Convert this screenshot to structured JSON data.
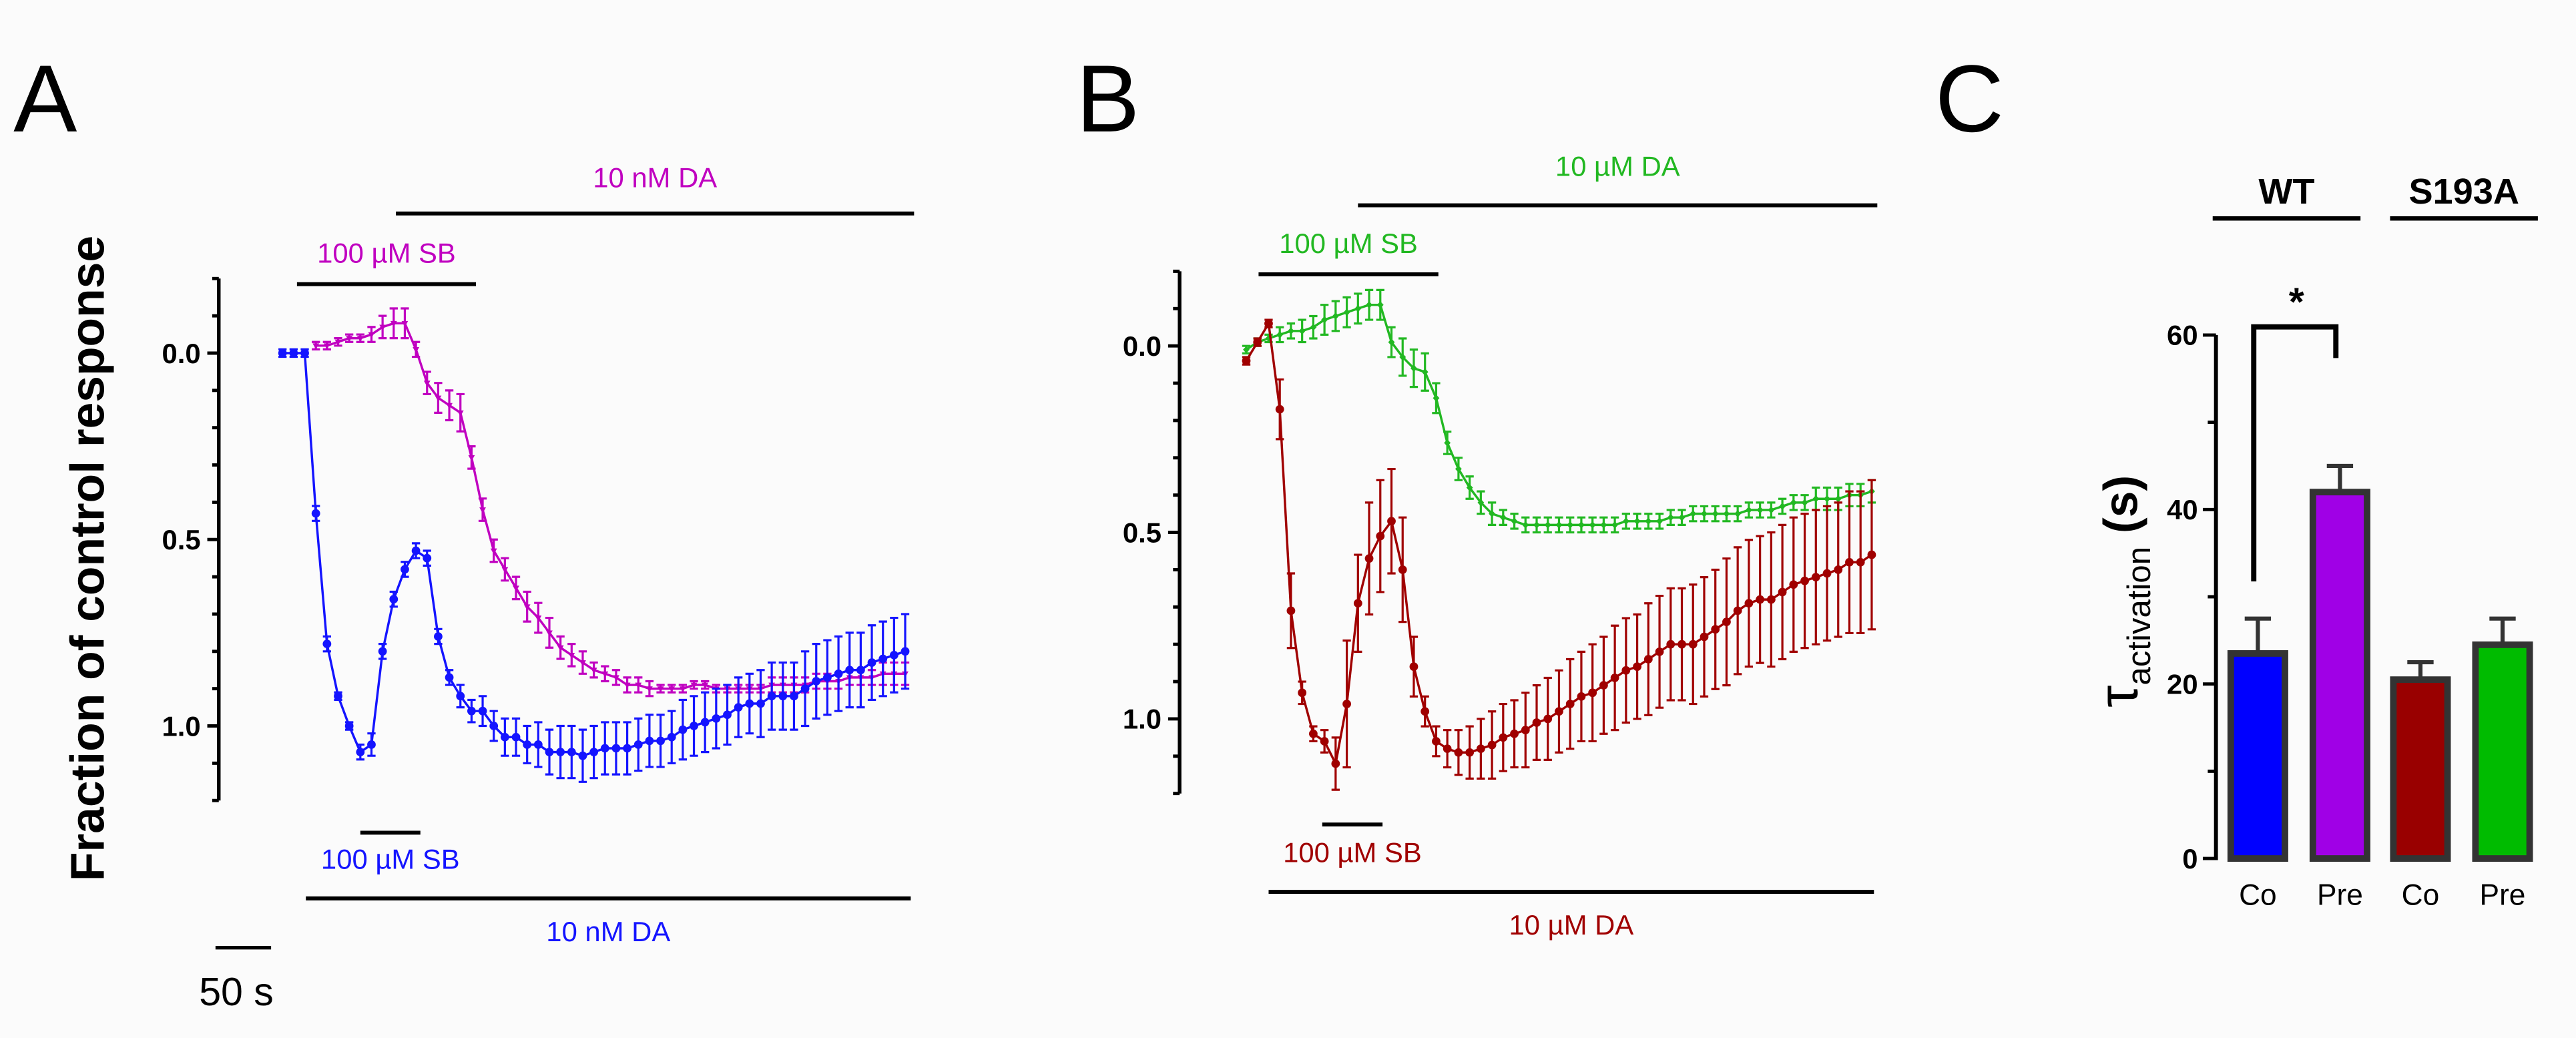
{
  "chart_data": [
    {
      "panel": "A",
      "type": "line",
      "ylabel": "Fraction of control response",
      "ylim": [
        -0.2,
        1.2
      ],
      "y_inverted": true,
      "y_major_ticks": [
        0.0,
        0.5,
        1.0
      ],
      "y_tick_labels": [
        "0.0",
        "0.5",
        "1.0"
      ],
      "y_minor_step": 0.1,
      "x_unit": "s",
      "scale_bar": {
        "value": 50,
        "label": "50 s"
      },
      "series": [
        {
          "name": "magenta",
          "color": "#c000c0",
          "marker": "triangle",
          "t_start": 30,
          "t_step": 10,
          "values": [
            -0.02,
            -0.02,
            -0.03,
            -0.04,
            -0.04,
            -0.05,
            -0.07,
            -0.08,
            -0.08,
            -0.01,
            0.08,
            0.12,
            0.14,
            0.16,
            0.28,
            0.42,
            0.53,
            0.58,
            0.63,
            0.68,
            0.71,
            0.75,
            0.79,
            0.81,
            0.83,
            0.85,
            0.86,
            0.87,
            0.89,
            0.89,
            0.9,
            0.9,
            0.9,
            0.9,
            0.89,
            0.89,
            0.9,
            0.9,
            0.9,
            0.9,
            0.9,
            0.89,
            0.89,
            0.89,
            0.89,
            0.88,
            0.88,
            0.88,
            0.87,
            0.87,
            0.87,
            0.86,
            0.86,
            0.86
          ],
          "errors": [
            0.01,
            0.01,
            0.01,
            0.01,
            0.01,
            0.02,
            0.03,
            0.04,
            0.04,
            0.02,
            0.03,
            0.04,
            0.04,
            0.05,
            0.03,
            0.03,
            0.03,
            0.03,
            0.03,
            0.04,
            0.04,
            0.04,
            0.03,
            0.03,
            0.03,
            0.02,
            0.02,
            0.02,
            0.02,
            0.02,
            0.02,
            0.01,
            0.01,
            0.01,
            0.01,
            0.01,
            0.01,
            0.01,
            0.01,
            0.01,
            0.01,
            0.02,
            0.02,
            0.02,
            0.02,
            0.02,
            0.02,
            0.02,
            0.02,
            0.02,
            0.02,
            0.03,
            0.03,
            0.03
          ]
        },
        {
          "name": "blue",
          "color": "#1414ff",
          "marker": "circle",
          "t_start": 0,
          "t_step": 10,
          "values": [
            0,
            0,
            0,
            0.43,
            0.78,
            0.92,
            1.0,
            1.07,
            1.05,
            0.8,
            0.66,
            0.58,
            0.53,
            0.55,
            0.76,
            0.87,
            0.92,
            0.96,
            0.96,
            1.0,
            1.03,
            1.03,
            1.05,
            1.05,
            1.07,
            1.07,
            1.07,
            1.08,
            1.07,
            1.06,
            1.06,
            1.06,
            1.05,
            1.04,
            1.04,
            1.03,
            1.01,
            1.0,
            0.99,
            0.98,
            0.97,
            0.95,
            0.94,
            0.94,
            0.92,
            0.92,
            0.92,
            0.9,
            0.88,
            0.87,
            0.86,
            0.85,
            0.85,
            0.83,
            0.82,
            0.81,
            0.8
          ],
          "errors": [
            0.01,
            0.01,
            0.01,
            0.02,
            0.02,
            0.01,
            0.01,
            0.02,
            0.03,
            0.02,
            0.02,
            0.02,
            0.02,
            0.02,
            0.02,
            0.02,
            0.03,
            0.03,
            0.04,
            0.04,
            0.05,
            0.05,
            0.05,
            0.06,
            0.06,
            0.07,
            0.07,
            0.07,
            0.07,
            0.07,
            0.07,
            0.07,
            0.07,
            0.07,
            0.07,
            0.07,
            0.08,
            0.08,
            0.08,
            0.08,
            0.08,
            0.08,
            0.08,
            0.09,
            0.09,
            0.09,
            0.09,
            0.1,
            0.1,
            0.1,
            0.1,
            0.1,
            0.1,
            0.1,
            0.1,
            0.1,
            0.1
          ]
        }
      ],
      "annotations": [
        {
          "label": "10 nM DA",
          "color": "#c000c0",
          "t": [
            102,
            568
          ],
          "position": "top-upper"
        },
        {
          "label": "100 µM SB",
          "color": "#c000c0",
          "t": [
            13,
            174
          ],
          "position": "top-lower"
        },
        {
          "label": "100 µM SB",
          "color": "#1414ff",
          "t": [
            70,
            124
          ],
          "position": "bottom-upper"
        },
        {
          "label": "10 nM DA",
          "color": "#1414ff",
          "t": [
            21,
            565
          ],
          "position": "bottom-lower"
        }
      ]
    },
    {
      "panel": "B",
      "type": "line",
      "ylim": [
        -0.2,
        1.2
      ],
      "y_inverted": true,
      "y_major_ticks": [
        0.0,
        0.5,
        1.0
      ],
      "y_tick_labels": [
        "0.0",
        "0.5",
        "1.0"
      ],
      "y_minor_step": 0.1,
      "x_unit": "s",
      "series": [
        {
          "name": "green",
          "color": "#22b822",
          "marker": "diamond",
          "t_start": 0,
          "t_step": 10,
          "values": [
            0.01,
            -0.01,
            -0.02,
            -0.03,
            -0.04,
            -0.04,
            -0.05,
            -0.07,
            -0.08,
            -0.09,
            -0.1,
            -0.11,
            -0.11,
            -0.01,
            0.03,
            0.06,
            0.07,
            0.14,
            0.26,
            0.33,
            0.38,
            0.42,
            0.45,
            0.46,
            0.47,
            0.48,
            0.48,
            0.48,
            0.48,
            0.48,
            0.48,
            0.48,
            0.48,
            0.48,
            0.47,
            0.47,
            0.47,
            0.47,
            0.46,
            0.46,
            0.45,
            0.45,
            0.45,
            0.45,
            0.45,
            0.44,
            0.44,
            0.44,
            0.43,
            0.42,
            0.42,
            0.41,
            0.41,
            0.41,
            0.4,
            0.4,
            0.39
          ],
          "errors": [
            0.01,
            0.01,
            0.01,
            0.02,
            0.02,
            0.03,
            0.03,
            0.04,
            0.04,
            0.04,
            0.04,
            0.04,
            0.04,
            0.04,
            0.05,
            0.05,
            0.05,
            0.04,
            0.03,
            0.03,
            0.03,
            0.03,
            0.03,
            0.02,
            0.02,
            0.02,
            0.02,
            0.02,
            0.02,
            0.02,
            0.02,
            0.02,
            0.02,
            0.02,
            0.02,
            0.02,
            0.02,
            0.02,
            0.02,
            0.02,
            0.02,
            0.02,
            0.02,
            0.02,
            0.02,
            0.02,
            0.02,
            0.02,
            0.02,
            0.02,
            0.02,
            0.03,
            0.03,
            0.03,
            0.03,
            0.03,
            0.03
          ]
        },
        {
          "name": "dark-red",
          "color": "#a00000",
          "marker": "circle",
          "t_start": 0,
          "t_step": 10,
          "values": [
            0.04,
            -0.01,
            -0.06,
            0.17,
            0.71,
            0.93,
            1.04,
            1.06,
            1.12,
            0.96,
            0.69,
            0.57,
            0.51,
            0.47,
            0.6,
            0.86,
            0.98,
            1.06,
            1.08,
            1.09,
            1.09,
            1.08,
            1.07,
            1.05,
            1.04,
            1.03,
            1.01,
            1.0,
            0.98,
            0.96,
            0.94,
            0.93,
            0.91,
            0.89,
            0.87,
            0.86,
            0.84,
            0.82,
            0.8,
            0.8,
            0.8,
            0.78,
            0.76,
            0.74,
            0.71,
            0.69,
            0.68,
            0.68,
            0.66,
            0.64,
            0.63,
            0.62,
            0.61,
            0.6,
            0.58,
            0.58,
            0.56
          ],
          "errors": [
            0.01,
            0.01,
            0.01,
            0.08,
            0.1,
            0.03,
            0.02,
            0.03,
            0.07,
            0.17,
            0.13,
            0.15,
            0.15,
            0.14,
            0.14,
            0.08,
            0.04,
            0.04,
            0.05,
            0.06,
            0.07,
            0.08,
            0.09,
            0.09,
            0.09,
            0.1,
            0.1,
            0.11,
            0.11,
            0.12,
            0.12,
            0.13,
            0.13,
            0.14,
            0.14,
            0.14,
            0.15,
            0.15,
            0.15,
            0.15,
            0.16,
            0.16,
            0.16,
            0.17,
            0.17,
            0.17,
            0.17,
            0.18,
            0.18,
            0.18,
            0.18,
            0.18,
            0.18,
            0.18,
            0.19,
            0.19,
            0.2
          ]
        }
      ],
      "annotations": [
        {
          "label": "10 µM DA",
          "color": "#22b822",
          "t": [
            100,
            565
          ],
          "position": "top-upper"
        },
        {
          "label": "100 µM SB",
          "color": "#22b822",
          "t": [
            11,
            172
          ],
          "position": "top-lower"
        },
        {
          "label": "100 µM SB",
          "color": "#a00000",
          "t": [
            68,
            122
          ],
          "position": "bottom-upper"
        },
        {
          "label": "10 µM DA",
          "color": "#a00000",
          "t": [
            20,
            562
          ],
          "position": "bottom-lower"
        }
      ]
    },
    {
      "panel": "C",
      "type": "bar",
      "ylabel_symbol": "τ",
      "ylabel_subscript": "activation",
      "ylabel_unit": " (s)",
      "ylim": [
        0,
        60
      ],
      "y_major_ticks": [
        0,
        20,
        40,
        60
      ],
      "y_tick_labels": [
        "0",
        "20",
        "40",
        "60"
      ],
      "y_minor_step": 10,
      "groups": [
        {
          "label": "WT"
        },
        {
          "label": "S193A"
        }
      ],
      "categories": [
        "Co",
        "Pre",
        "Co",
        "Pre"
      ],
      "values": [
        23.5,
        42,
        20.5,
        24.5
      ],
      "errors": [
        4,
        3,
        2,
        3
      ],
      "colors": [
        "#0000ff",
        "#a000e6",
        "#990000",
        "#00bb00"
      ],
      "significance": {
        "between": [
          0,
          1
        ],
        "label": "*"
      }
    }
  ]
}
